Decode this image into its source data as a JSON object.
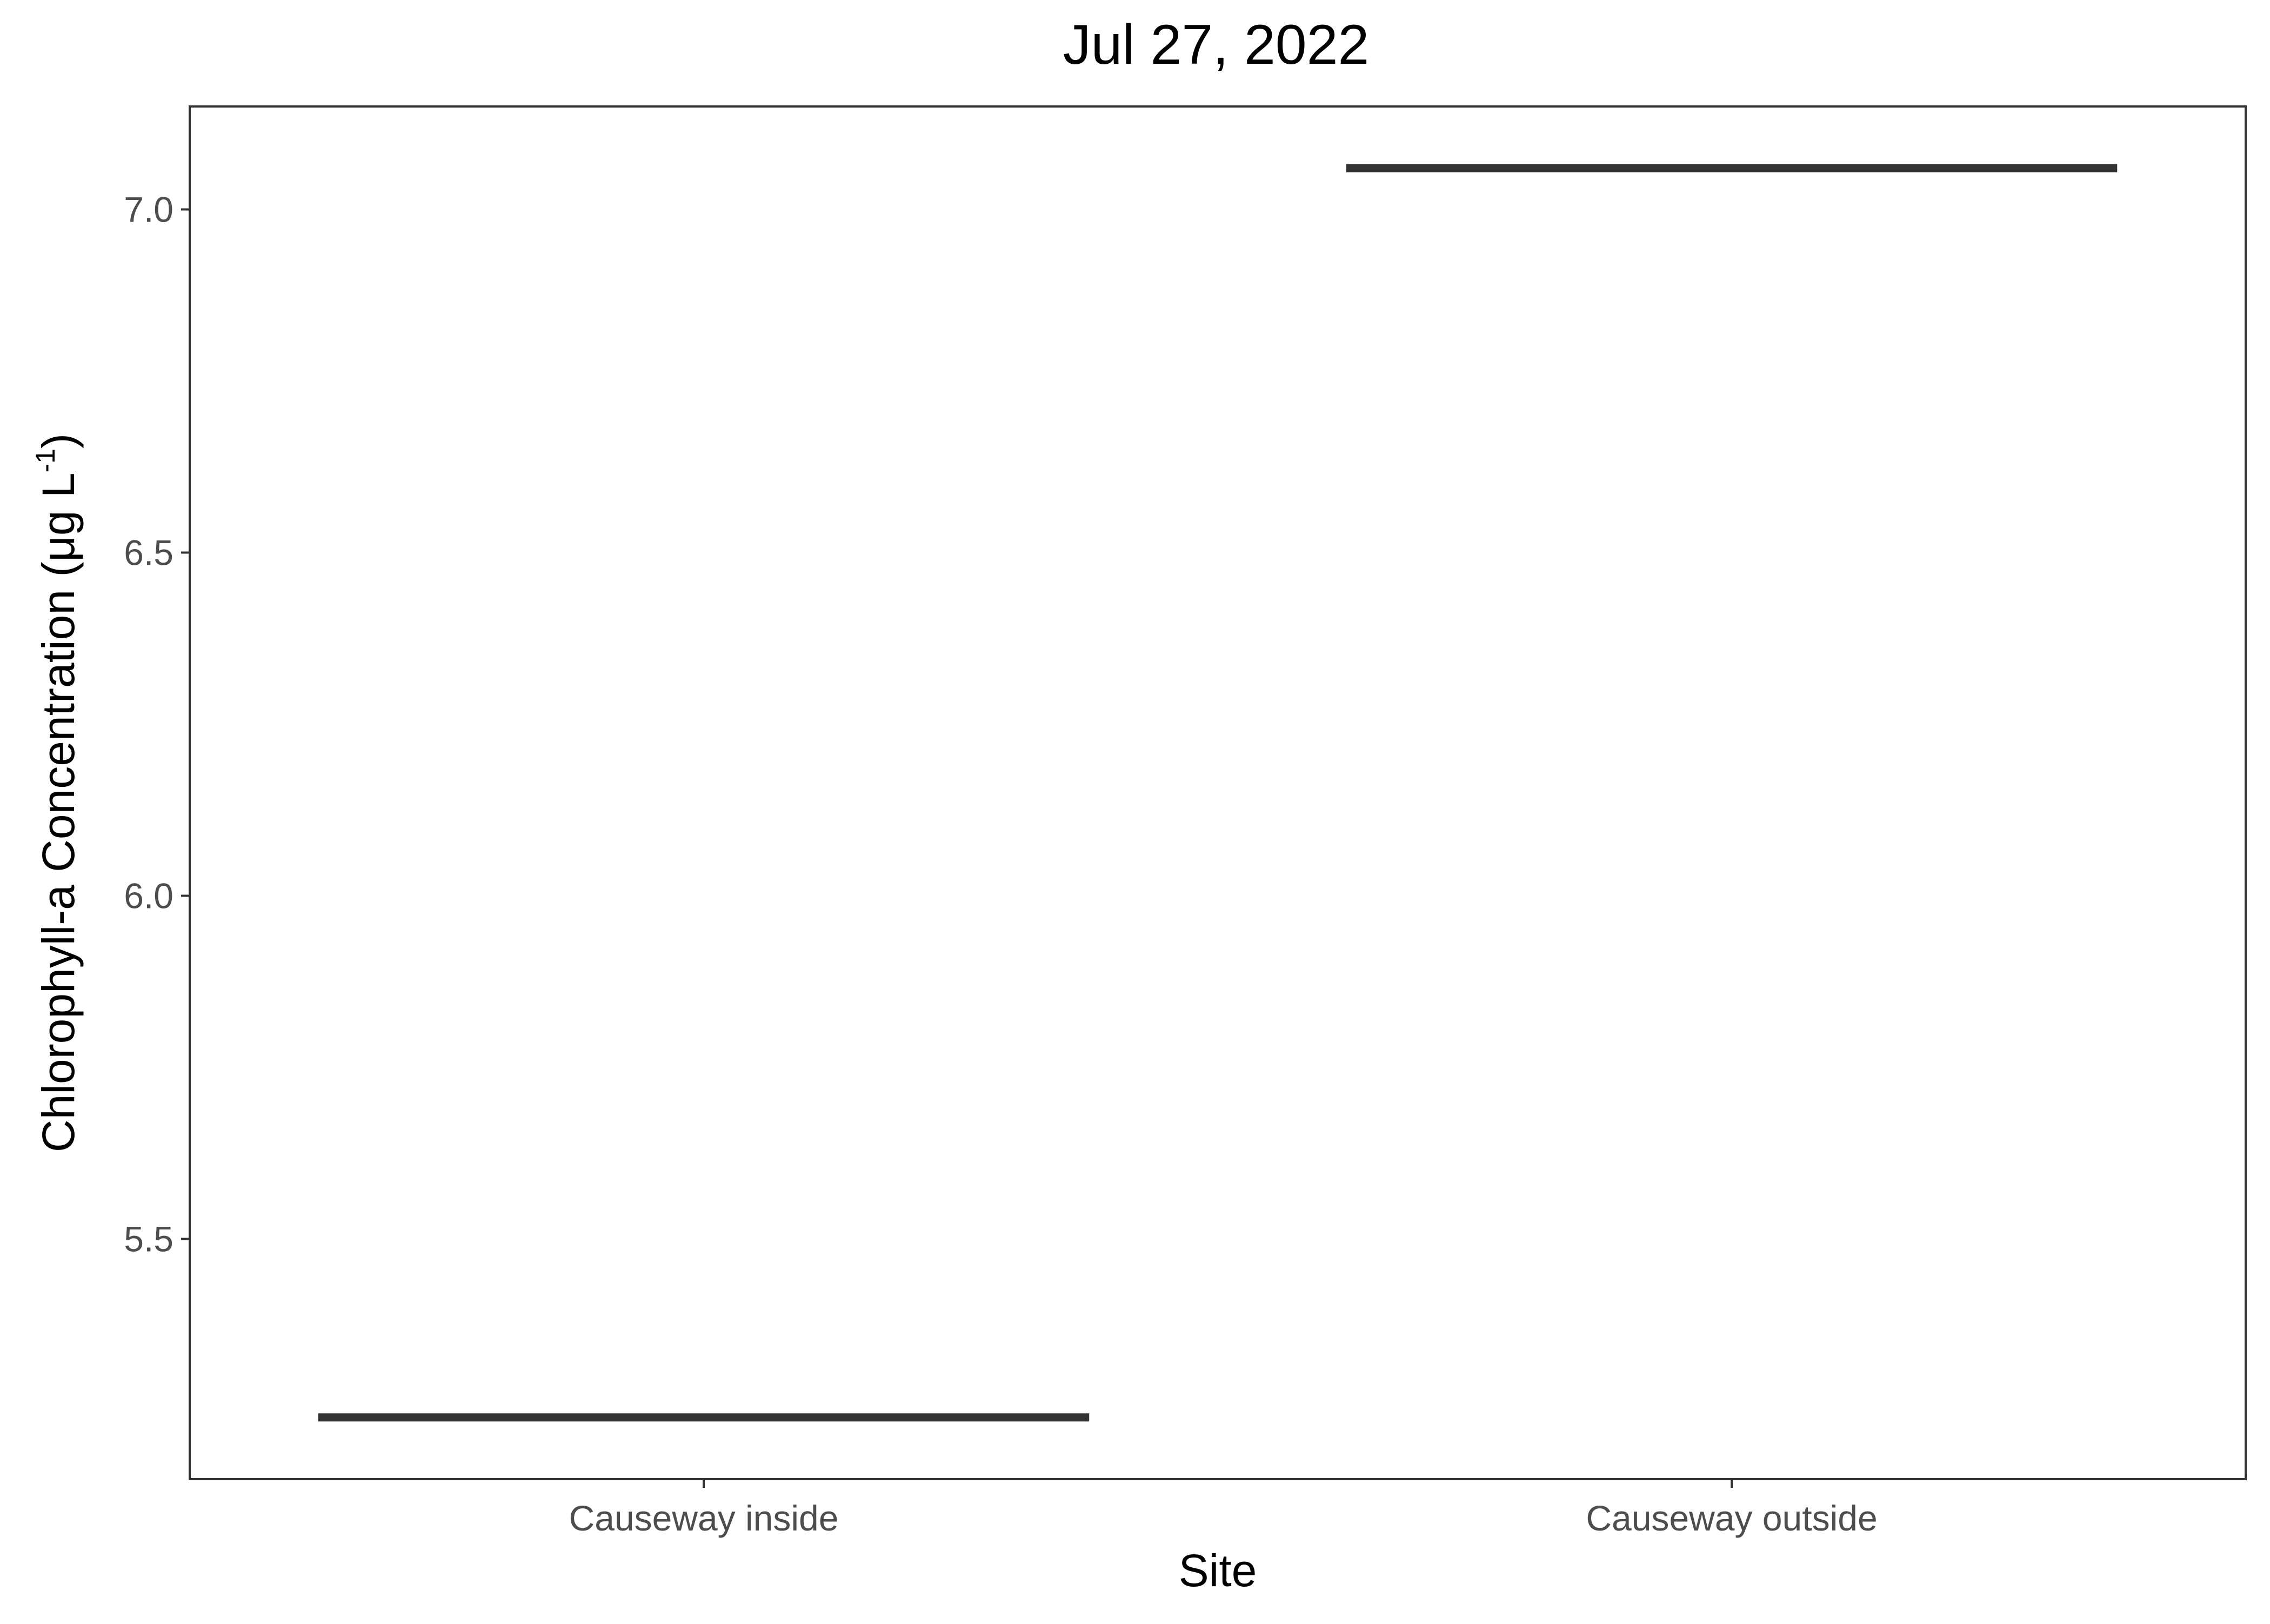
{
  "chart_data": {
    "type": "boxplot",
    "title": "Jul 27, 2022",
    "xlabel": "Site",
    "ylabel": {
      "main": "Chlorophyll-a Concentration (μg L",
      "superscript": "-1",
      "close": ")"
    },
    "categories": [
      "Causeway inside",
      "Causeway outside"
    ],
    "values": [
      5.24,
      7.06
    ],
    "ylim": [
      5.15,
      7.15
    ],
    "yticks": [
      5.5,
      6.0,
      6.5,
      7.0
    ],
    "ytick_labels": [
      "5.5",
      "6.0",
      "6.5",
      "7.0"
    ],
    "grid": false,
    "legend": "none",
    "colors": {
      "line": "#333333",
      "panel_border": "#333333",
      "tick": "#333333",
      "tick_label": "#4d4d4d",
      "text": "#000000",
      "background": "#ffffff"
    }
  }
}
